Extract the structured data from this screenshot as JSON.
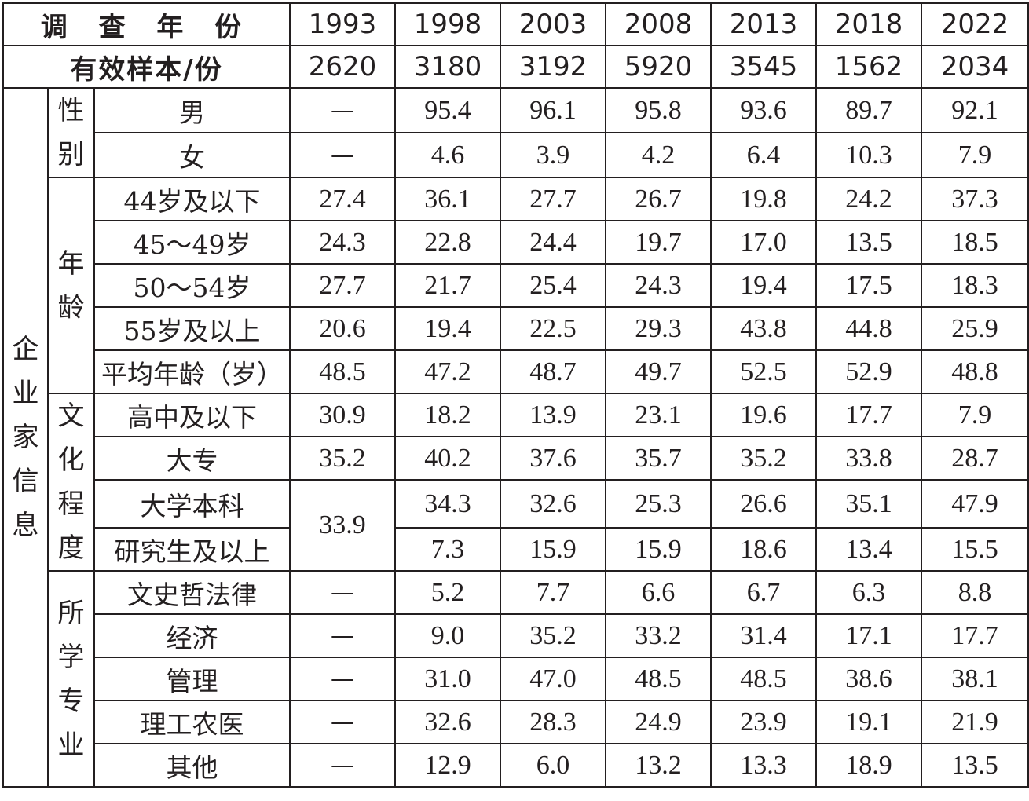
{
  "header": {
    "year_label": "调 查 年 份",
    "years": [
      "1993",
      "1998",
      "2003",
      "2008",
      "2013",
      "2018",
      "2022"
    ],
    "sample_label": "有效样本/份",
    "samples": [
      "2620",
      "3180",
      "3192",
      "5920",
      "3545",
      "1562",
      "2034"
    ]
  },
  "group": {
    "label": "企业家信息",
    "chars": [
      "企",
      "业",
      "家",
      "信",
      "息"
    ]
  },
  "subgroups": [
    {
      "label": "性别",
      "chars": [
        "性",
        "别"
      ],
      "rows": [
        {
          "label": "男",
          "values": [
            "—",
            "95.4",
            "96.1",
            "95.8",
            "93.6",
            "89.7",
            "92.1"
          ]
        },
        {
          "label": "女",
          "values": [
            "—",
            "4.6",
            "3.9",
            "4.2",
            "6.4",
            "10.3",
            "7.9"
          ]
        }
      ]
    },
    {
      "label": "年龄",
      "chars": [
        "年",
        "龄"
      ],
      "rows": [
        {
          "label": "44岁及以下",
          "values": [
            "27.4",
            "36.1",
            "27.7",
            "26.7",
            "19.8",
            "24.2",
            "37.3"
          ]
        },
        {
          "label": "45～49岁",
          "values": [
            "24.3",
            "22.8",
            "24.4",
            "19.7",
            "17.0",
            "13.5",
            "18.5"
          ]
        },
        {
          "label": "50～54岁",
          "values": [
            "27.7",
            "21.7",
            "25.4",
            "24.3",
            "19.4",
            "17.5",
            "18.3"
          ]
        },
        {
          "label": "55岁及以上",
          "values": [
            "20.6",
            "19.4",
            "22.5",
            "29.3",
            "43.8",
            "44.8",
            "25.9"
          ]
        },
        {
          "label": "平均年龄（岁）",
          "values": [
            "48.5",
            "47.2",
            "48.7",
            "49.7",
            "52.5",
            "52.9",
            "48.8"
          ]
        }
      ]
    },
    {
      "label": "文化程度",
      "chars": [
        "文",
        "化",
        "程",
        "度"
      ],
      "rows": [
        {
          "label": "高中及以下",
          "values": [
            "30.9",
            "18.2",
            "13.9",
            "23.1",
            "19.6",
            "17.7",
            "7.9"
          ]
        },
        {
          "label": "大专",
          "values": [
            "35.2",
            "40.2",
            "37.6",
            "35.7",
            "35.2",
            "33.8",
            "28.7"
          ]
        },
        {
          "label": "大学本科",
          "values": [
            "34.3",
            "32.6",
            "25.3",
            "26.6",
            "35.1",
            "47.9"
          ]
        },
        {
          "label": "研究生及以上",
          "values": [
            "7.3",
            "15.9",
            "15.9",
            "18.6",
            "13.4",
            "15.5"
          ]
        }
      ],
      "merged_1993": "33.9"
    },
    {
      "label": "所学专业",
      "chars": [
        "所",
        "学",
        "专",
        "业"
      ],
      "rows": [
        {
          "label": "文史哲法律",
          "values": [
            "—",
            "5.2",
            "7.7",
            "6.6",
            "6.7",
            "6.3",
            "8.8"
          ]
        },
        {
          "label": "经济",
          "values": [
            "—",
            "9.0",
            "35.2",
            "33.2",
            "31.4",
            "17.1",
            "17.7"
          ]
        },
        {
          "label": "管理",
          "values": [
            "—",
            "31.0",
            "47.0",
            "48.5",
            "48.5",
            "38.6",
            "38.1"
          ]
        },
        {
          "label": "理工农医",
          "values": [
            "—",
            "32.6",
            "28.3",
            "24.9",
            "23.9",
            "19.1",
            "21.9"
          ]
        },
        {
          "label": "其他",
          "values": [
            "—",
            "12.9",
            "6.0",
            "13.2",
            "13.3",
            "18.9",
            "13.5"
          ]
        }
      ]
    }
  ]
}
